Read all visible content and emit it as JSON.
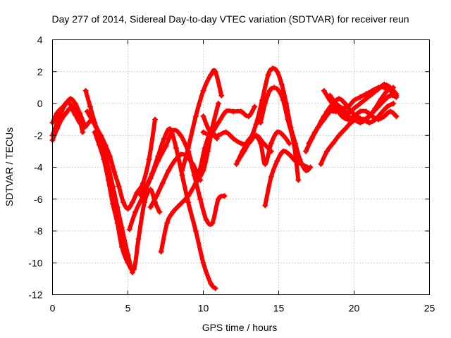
{
  "chart_data": {
    "type": "line",
    "title": "Day 277 of 2014, Sidereal Day-to-day VTEC variation (SDTVAR) for receiver reun",
    "xlabel": "GPS time / hours",
    "ylabel": "SDTVAR / TECUs",
    "xlim": [
      0,
      25
    ],
    "ylim": [
      -12,
      4
    ],
    "xticks": [
      "0",
      "5",
      "10",
      "15",
      "20",
      "25"
    ],
    "yticks": [
      "-12",
      "-10",
      "-8",
      "-6",
      "-4",
      "-2",
      "0",
      "2",
      "4"
    ],
    "grid": true,
    "marker": "+",
    "color": "#ff0000",
    "series": [
      {
        "x": [
          0.0,
          0.3,
          0.6,
          0.9,
          1.2,
          1.5,
          1.8,
          2.1,
          2.4,
          2.7
        ],
        "y": [
          -2.3,
          -1.6,
          -1.0,
          -0.6,
          -0.3,
          -0.7,
          -1.2,
          -1.5,
          -1.2,
          -1.0
        ]
      },
      {
        "x": [
          0.0,
          0.3,
          0.6,
          0.9,
          1.2,
          1.5,
          1.8,
          2.1
        ],
        "y": [
          -2.0,
          -1.2,
          -0.5,
          0.0,
          0.3,
          0.0,
          -0.6,
          -1.3
        ]
      },
      {
        "x": [
          0.0,
          0.3,
          0.7,
          1.0,
          1.3,
          1.7,
          2.0
        ],
        "y": [
          -1.2,
          -0.6,
          -0.2,
          0.1,
          -0.2,
          -0.7,
          -1.8
        ]
      },
      {
        "x": [
          2.3,
          2.6,
          2.9,
          3.2,
          3.5,
          3.8,
          4.1,
          4.4,
          4.7,
          5.0,
          5.3,
          5.6,
          6.0,
          6.4,
          6.8
        ],
        "y": [
          -0.5,
          -1.0,
          -1.5,
          -2.0,
          -2.6,
          -3.3,
          -4.3,
          -5.2,
          -6.2,
          -6.6,
          -6.2,
          -5.6,
          -5.0,
          -3.5,
          -1.0
        ]
      },
      {
        "x": [
          2.8,
          3.1,
          3.4,
          3.7,
          4.0,
          4.3,
          4.6,
          5.0,
          5.4,
          5.7,
          6.1,
          6.5,
          6.8,
          7.1
        ],
        "y": [
          -1.8,
          -2.6,
          -3.5,
          -4.8,
          -6.3,
          -7.5,
          -9.0,
          -10.0,
          -10.4,
          -8.5,
          -6.2,
          -5.4,
          -6.2,
          -6.8
        ]
      },
      {
        "x": [
          2.2,
          2.5,
          2.8,
          3.1,
          3.4,
          3.7,
          4.0,
          4.3,
          4.6,
          5.0,
          5.3
        ],
        "y": [
          0.8,
          -0.2,
          -1.2,
          -2.0,
          -2.8,
          -4.0,
          -5.2,
          -6.5,
          -7.8,
          -9.5,
          -10.6
        ]
      },
      {
        "x": [
          5.1,
          5.5,
          6.0,
          6.5,
          7.0,
          7.5,
          8.0,
          8.5,
          9.0,
          9.3,
          9.6,
          9.8
        ],
        "y": [
          -7.9,
          -6.8,
          -5.8,
          -4.7,
          -3.6,
          -2.7,
          -1.7,
          -2.0,
          -3.0,
          -4.0,
          -4.6,
          -4.8
        ]
      },
      {
        "x": [
          5.8,
          6.2,
          6.6,
          7.0,
          7.4,
          7.8,
          8.2,
          8.6,
          9.0,
          9.5,
          10.0,
          10.5,
          10.8
        ],
        "y": [
          -5.7,
          -5.2,
          -4.4,
          -3.3,
          -2.2,
          -1.6,
          -2.8,
          -4.5,
          -6.2,
          -8.0,
          -10.0,
          -11.3,
          -11.6
        ]
      },
      {
        "x": [
          6.5,
          6.9,
          7.3,
          7.7,
          8.1,
          8.5,
          8.9,
          9.3,
          9.7,
          10.1,
          10.5,
          10.9
        ],
        "y": [
          -6.5,
          -5.8,
          -5.0,
          -4.2,
          -3.6,
          -3.2,
          -3.3,
          -3.8,
          -4.3,
          -2.8,
          -1.8,
          -2.2
        ]
      },
      {
        "x": [
          7.2,
          7.6,
          8.0,
          8.5,
          9.0,
          9.5,
          10.0,
          10.3,
          10.6,
          11.0
        ],
        "y": [
          -9.3,
          -7.5,
          -6.8,
          -6.3,
          -5.8,
          -5.0,
          -4.2,
          -3.0,
          -1.5,
          0.0
        ]
      },
      {
        "x": [
          9.0,
          9.4,
          9.8,
          10.2,
          10.6,
          11.0,
          11.4
        ],
        "y": [
          -3.0,
          -4.5,
          -6.0,
          -7.3,
          -7.5,
          -6.0,
          -5.8
        ]
      },
      {
        "x": [
          8.6,
          9.0,
          9.5,
          10.0,
          10.5,
          10.8,
          11.2
        ],
        "y": [
          -4.2,
          -2.8,
          -0.8,
          0.8,
          1.8,
          2.0,
          0.5
        ]
      },
      {
        "x": [
          10.0,
          10.5,
          11.0,
          11.5,
          12.0,
          12.5,
          13.0,
          13.4
        ],
        "y": [
          -0.8,
          -1.8,
          -1.2,
          -0.5,
          -0.5,
          -0.5,
          -0.8,
          -0.2
        ]
      },
      {
        "x": [
          10.0,
          10.5,
          11.0,
          11.5,
          12.0,
          12.5,
          13.0,
          13.5,
          14.0,
          14.5
        ],
        "y": [
          -1.8,
          -2.0,
          -2.0,
          -1.8,
          -2.2,
          -2.5,
          -2.5,
          -2.0,
          -2.5,
          -3.0
        ]
      },
      {
        "x": [
          12.3,
          12.7,
          13.1,
          13.5,
          13.9,
          14.3,
          14.6,
          14.9,
          15.2,
          15.5,
          15.8,
          16.1,
          16.4,
          16.8,
          17.1
        ],
        "y": [
          -3.6,
          -3.0,
          -2.3,
          -1.3,
          0.2,
          1.8,
          2.2,
          2.0,
          1.2,
          0.0,
          -1.5,
          -2.5,
          -3.5,
          -4.2,
          -4.0
        ]
      },
      {
        "x": [
          13.8,
          14.1,
          14.4,
          14.7,
          15.0,
          15.3,
          15.6,
          16.0,
          16.3
        ],
        "y": [
          -1.2,
          0.0,
          0.8,
          1.0,
          0.8,
          0.2,
          -1.0,
          -2.5,
          -4.8
        ]
      },
      {
        "x": [
          14.1,
          14.5,
          14.9,
          15.3,
          15.7,
          16.1,
          16.5,
          16.9
        ],
        "y": [
          -6.4,
          -4.6,
          -3.6,
          -3.0,
          -3.2,
          -3.6,
          -3.8,
          -4.0
        ]
      },
      {
        "x": [
          12.2,
          12.6,
          13.0,
          13.4,
          13.8,
          14.1,
          14.5,
          14.9,
          15.3,
          15.7
        ],
        "y": [
          -3.8,
          -3.0,
          -2.3,
          -2.0,
          -2.5,
          -3.8,
          -2.5,
          -1.8,
          -2.0,
          -2.5
        ]
      },
      {
        "x": [
          16.8,
          17.2,
          17.6,
          18.0,
          18.4,
          18.8,
          19.2,
          19.6,
          20.0,
          20.4,
          20.8,
          21.2,
          21.6,
          22.0,
          22.4,
          22.8
        ],
        "y": [
          -3.0,
          -2.2,
          -1.5,
          -0.8,
          -0.5,
          -0.5,
          -0.3,
          -0.2,
          0.2,
          0.4,
          0.6,
          0.8,
          1.0,
          1.0,
          0.8,
          0.5
        ]
      },
      {
        "x": [
          17.0,
          17.4,
          17.8,
          18.2,
          18.6,
          19.0,
          19.4,
          19.8,
          20.2,
          20.6,
          21.0,
          21.4,
          21.8,
          22.2,
          22.6
        ],
        "y": [
          -2.5,
          -1.8,
          -1.2,
          -0.5,
          0.0,
          0.3,
          0.0,
          -0.5,
          -0.8,
          -1.0,
          -0.8,
          -0.3,
          0.3,
          0.8,
          1.0
        ]
      },
      {
        "x": [
          18.0,
          18.4,
          18.8,
          19.2,
          19.6,
          20.0,
          20.4,
          20.8,
          21.2,
          21.6,
          22.0,
          22.4,
          22.8
        ],
        "y": [
          0.8,
          0.2,
          -0.3,
          -0.8,
          -1.0,
          -0.8,
          -0.5,
          -0.5,
          -0.8,
          -1.0,
          -0.8,
          -0.5,
          -0.8
        ]
      },
      {
        "x": [
          17.6,
          18.0,
          18.4,
          18.8,
          19.2,
          19.6,
          20.0,
          20.4,
          20.8,
          21.2,
          21.6,
          22.0,
          22.4,
          22.8
        ],
        "y": [
          -1.5,
          -1.0,
          -0.5,
          -0.3,
          -0.5,
          -0.8,
          -1.0,
          -1.2,
          -1.0,
          -0.6,
          -0.2,
          0.2,
          0.5,
          0.4
        ]
      },
      {
        "x": [
          17.8,
          18.2,
          18.6,
          19.0,
          19.4,
          19.8,
          20.2,
          20.6,
          21.0,
          21.4,
          21.8,
          22.2,
          22.6
        ],
        "y": [
          -3.8,
          -3.0,
          -2.5,
          -2.0,
          -1.6,
          -1.2,
          -1.0,
          -1.0,
          -1.2,
          -1.0,
          -0.6,
          -0.2,
          0.0
        ]
      },
      {
        "x": [
          18.4,
          18.8,
          19.2,
          19.6,
          20.0,
          20.4,
          20.8,
          21.2,
          21.6,
          22.0,
          22.4,
          22.8
        ],
        "y": [
          0.5,
          0.0,
          -0.3,
          -0.6,
          -0.3,
          0.0,
          0.3,
          0.6,
          0.9,
          1.2,
          1.0,
          0.6
        ]
      }
    ]
  }
}
